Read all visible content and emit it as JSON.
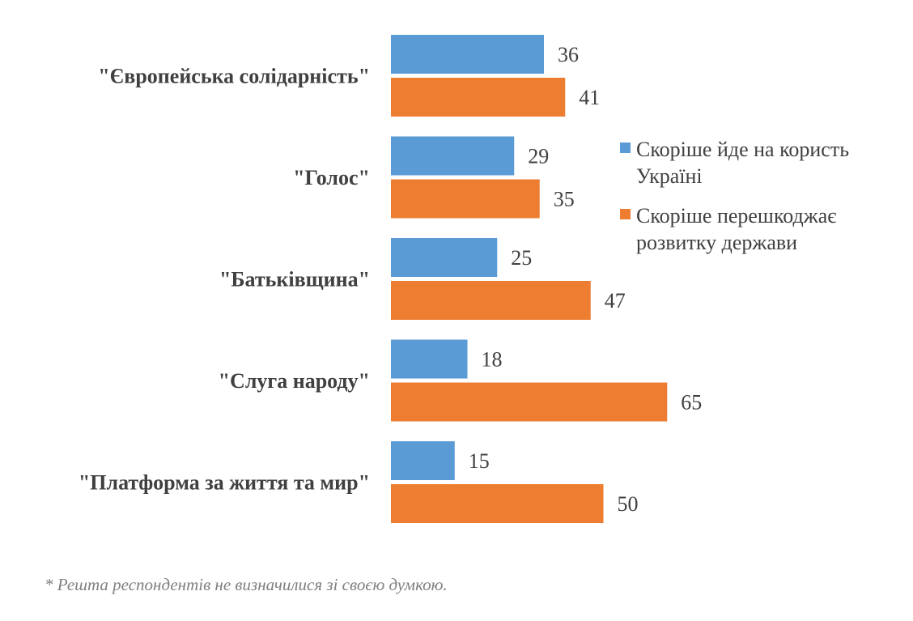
{
  "chart_data": {
    "type": "bar",
    "orientation": "horizontal",
    "categories": [
      "\"Європейська солідарність\"",
      "\"Голос\"",
      "\"Батьківщина\"",
      "\"Слуга народу\"",
      "\"Платформа за життя та мир\""
    ],
    "series": [
      {
        "name": "Скоріше йде на користь Україні",
        "legend_lines": [
          "Скоріше йде на користь",
          "Україні"
        ],
        "color": "#5b9bd5",
        "values": [
          36,
          29,
          25,
          18,
          15
        ]
      },
      {
        "name": "Скоріше перешкоджає розвитку держави",
        "legend_lines": [
          "Скоріше перешкоджає",
          "розвитку держави"
        ],
        "color": "#ed7d31",
        "values": [
          41,
          35,
          47,
          65,
          50
        ]
      }
    ],
    "xlim": [
      0,
      100
    ],
    "grid": false,
    "data_labels": true,
    "legend_position": "right"
  },
  "footnote": "* Решта респондентів не визначилися зі своєю думкою."
}
